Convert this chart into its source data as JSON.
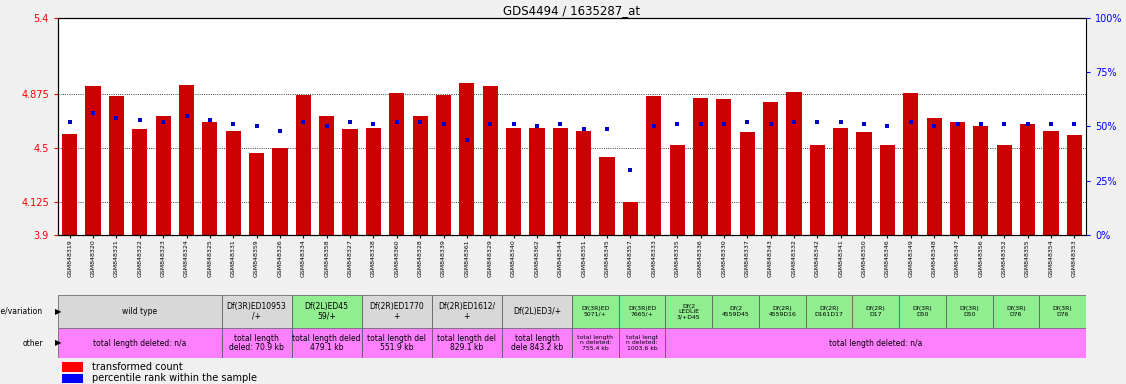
{
  "title": "GDS4494 / 1635287_at",
  "samples": [
    "GSM848319",
    "GSM848320",
    "GSM848321",
    "GSM848322",
    "GSM848323",
    "GSM848324",
    "GSM848325",
    "GSM848331",
    "GSM848359",
    "GSM848326",
    "GSM848334",
    "GSM848358",
    "GSM848327",
    "GSM848338",
    "GSM848360",
    "GSM848328",
    "GSM848339",
    "GSM848361",
    "GSM848329",
    "GSM848340",
    "GSM848362",
    "GSM848344",
    "GSM848351",
    "GSM848345",
    "GSM848357",
    "GSM848333",
    "GSM848335",
    "GSM848336",
    "GSM848330",
    "GSM848337",
    "GSM848343",
    "GSM848332",
    "GSM848342",
    "GSM848341",
    "GSM848350",
    "GSM848346",
    "GSM848349",
    "GSM848348",
    "GSM848347",
    "GSM848356",
    "GSM848352",
    "GSM848355",
    "GSM848354",
    "GSM848353"
  ],
  "bar_values": [
    4.6,
    4.93,
    4.86,
    4.63,
    4.72,
    4.94,
    4.68,
    4.62,
    4.47,
    4.5,
    4.87,
    4.72,
    4.63,
    4.64,
    4.88,
    4.72,
    4.87,
    4.95,
    4.93,
    4.64,
    4.64,
    4.64,
    4.62,
    4.44,
    4.13,
    4.86,
    4.52,
    4.85,
    4.84,
    4.61,
    4.82,
    4.89,
    4.52,
    4.64,
    4.61,
    4.52,
    4.88,
    4.71,
    4.68,
    4.65,
    4.52,
    4.67,
    4.62,
    4.59
  ],
  "percentile_values": [
    52,
    56,
    54,
    53,
    52,
    55,
    53,
    51,
    50,
    48,
    52,
    50,
    52,
    51,
    52,
    52,
    51,
    44,
    51,
    51,
    50,
    51,
    49,
    49,
    30,
    50,
    51,
    51,
    51,
    52,
    51,
    52,
    52,
    52,
    51,
    50,
    52,
    50,
    51,
    51,
    51,
    51,
    51,
    51
  ],
  "ylim": [
    3.9,
    5.4
  ],
  "yticks_left": [
    3.9,
    4.125,
    4.5,
    4.875,
    5.4
  ],
  "yticks_right": [
    0,
    25,
    50,
    75,
    100
  ],
  "bar_color": "#CC0000",
  "percentile_color": "#0000CC",
  "plot_bg": "#ffffff",
  "outer_bg": "#f0f0f0",
  "genotype_groups": [
    {
      "label": "wild type",
      "start": 0,
      "end": 7,
      "bg": "#d8d8d8"
    },
    {
      "label": "Df(3R)ED10953\n/+",
      "start": 7,
      "end": 10,
      "bg": "#d8d8d8"
    },
    {
      "label": "Df(2L)ED45\n59/+",
      "start": 10,
      "end": 13,
      "bg": "#90EE90"
    },
    {
      "label": "Df(2R)ED1770\n+",
      "start": 13,
      "end": 16,
      "bg": "#d8d8d8"
    },
    {
      "label": "Df(2R)ED1612/\n+",
      "start": 16,
      "end": 19,
      "bg": "#d8d8d8"
    },
    {
      "label": "Df(2L)ED3/+",
      "start": 19,
      "end": 22,
      "bg": "#d8d8d8"
    },
    {
      "label": "Df(3R)ED\n5071/+",
      "start": 22,
      "end": 24,
      "bg": "#90EE90"
    },
    {
      "label": "Df(3R)ED\n7665/+",
      "start": 24,
      "end": 26,
      "bg": "#90EE90"
    },
    {
      "label": "Df(2\nLEDLiE\n3/+D45",
      "start": 26,
      "end": 28,
      "bg": "#90EE90"
    },
    {
      "label": "Df(2\n4559D45",
      "start": 28,
      "end": 30,
      "bg": "#90EE90"
    },
    {
      "label": "Df(2R)\n4559D16",
      "start": 30,
      "end": 32,
      "bg": "#90EE90"
    },
    {
      "label": "Df(2R)\nD161D17",
      "start": 32,
      "end": 34,
      "bg": "#90EE90"
    },
    {
      "label": "Df(2R)\nD17",
      "start": 34,
      "end": 36,
      "bg": "#90EE90"
    },
    {
      "label": "Df(3R)\nD50",
      "start": 36,
      "end": 38,
      "bg": "#90EE90"
    },
    {
      "label": "Df(3R)\nD50",
      "start": 38,
      "end": 40,
      "bg": "#90EE90"
    },
    {
      "label": "Df(3R)\nD76",
      "start": 40,
      "end": 42,
      "bg": "#90EE90"
    },
    {
      "label": "Df(3R)\nD76",
      "start": 42,
      "end": 44,
      "bg": "#90EE90"
    }
  ],
  "other_groups": [
    {
      "label": "total length deleted: n/a",
      "start": 0,
      "end": 7,
      "bg": "#FF80FF"
    },
    {
      "label": "total length\ndeled: 70.9 kb",
      "start": 7,
      "end": 10,
      "bg": "#FF80FF"
    },
    {
      "label": "total length deled\n479.1 kb",
      "start": 10,
      "end": 13,
      "bg": "#FF80FF"
    },
    {
      "label": "total length del\n551.9 kb",
      "start": 13,
      "end": 16,
      "bg": "#FF80FF"
    },
    {
      "label": "total length del\n829.1 kb",
      "start": 16,
      "end": 19,
      "bg": "#FF80FF"
    },
    {
      "label": "total length\ndele 843.2 kb",
      "start": 19,
      "end": 22,
      "bg": "#FF80FF"
    },
    {
      "label": "total length\nn deleted:\n755.4 kb",
      "start": 22,
      "end": 24,
      "bg": "#FF80FF"
    },
    {
      "label": "total lengt\nn deleted:\n1003.6 kb",
      "start": 24,
      "end": 26,
      "bg": "#FF80FF"
    },
    {
      "label": "total length deleted: n/a",
      "start": 26,
      "end": 44,
      "bg": "#FF80FF"
    }
  ],
  "legend_bar": "transformed count",
  "legend_dot": "percentile rank within the sample"
}
